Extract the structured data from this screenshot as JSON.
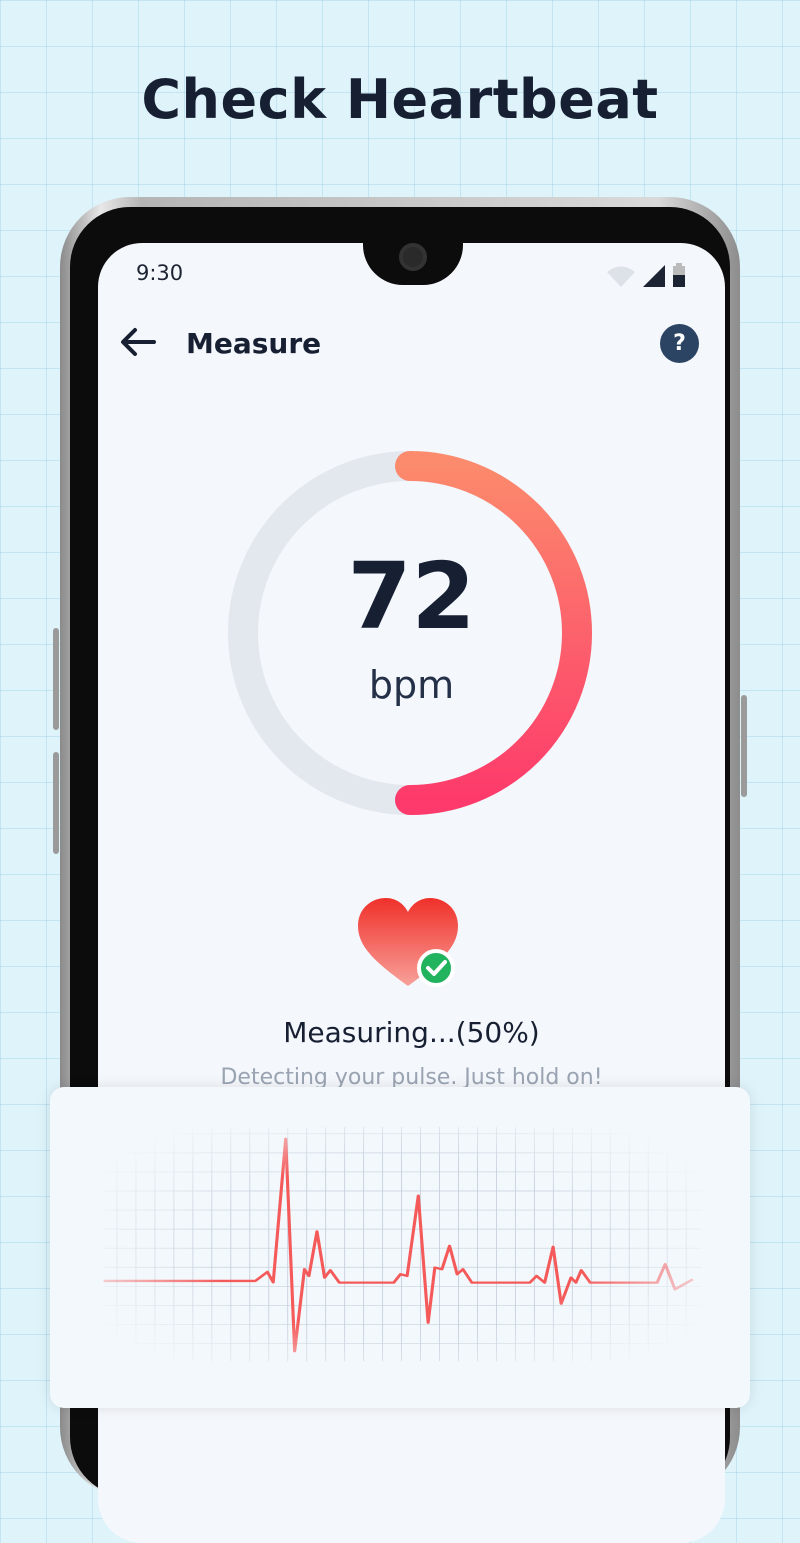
{
  "headline": "Check Heartbeat",
  "status_bar": {
    "time": "9:30",
    "icons": [
      "wifi-icon",
      "signal-icon",
      "battery-icon"
    ]
  },
  "header": {
    "title": "Measure",
    "back_icon": "arrow-left-icon",
    "help_label": "?"
  },
  "gauge": {
    "value": "72",
    "unit": "bpm",
    "progress_percent": 50,
    "track_color": "#e3e8ef",
    "gradient": [
      "#fc8a6c",
      "#fd3a6b"
    ]
  },
  "status": {
    "measuring": "Measuring...(50%)",
    "hint": "Detecting your pulse. Just hold on!",
    "icon": "heart-check-icon"
  },
  "colors": {
    "accent": "#fd3a6b",
    "check": "#22b35e",
    "ecg": "#f45a5a"
  }
}
